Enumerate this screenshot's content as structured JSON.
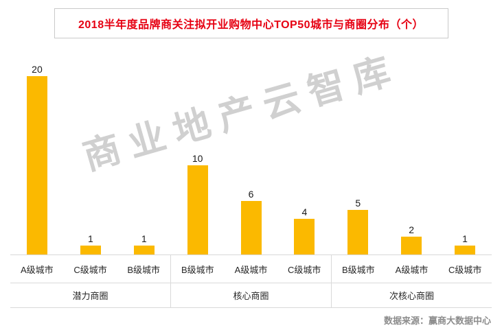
{
  "title": "2018半年度品牌商关注拟开业购物中心TOP50城市与商圈分布（个）",
  "watermark": "商业地产云智库",
  "source": "数据来源：赢商大数据中心",
  "colors": {
    "bar": "#fbb900",
    "title": "#e60012",
    "source_text": "#8c8c8c",
    "watermark": "rgba(120,120,120,0.35)",
    "axis_line": "#d9d9d9"
  },
  "chart_data": {
    "type": "bar",
    "title": "2018半年度品牌商关注拟开业购物中心TOP50城市与商圈分布（个）",
    "xlabel": "",
    "ylabel": "",
    "ylim": [
      0,
      21
    ],
    "grid": false,
    "legend": false,
    "data_labels": true,
    "bar_color": "#fbb900",
    "groups": [
      {
        "label": "潜力商圈",
        "categories": [
          "A级城市",
          "C级城市",
          "B级城市"
        ],
        "values": [
          20,
          1,
          1
        ]
      },
      {
        "label": "核心商圈",
        "categories": [
          "B级城市",
          "A级城市",
          "C级城市"
        ],
        "values": [
          10,
          6,
          4
        ]
      },
      {
        "label": "次核心商圈",
        "categories": [
          "B级城市",
          "A级城市",
          "C级城市"
        ],
        "values": [
          5,
          2,
          1
        ]
      }
    ]
  }
}
